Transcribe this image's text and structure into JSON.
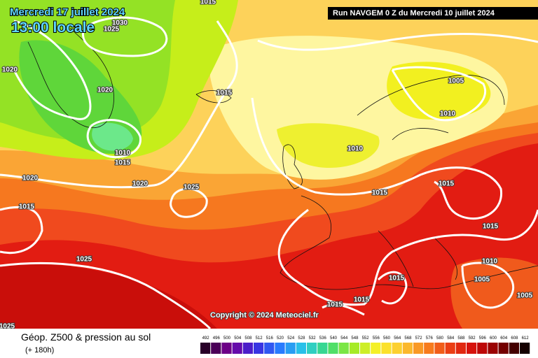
{
  "header": {
    "date": "Mercredi 17 juillet 2024",
    "time": "13:00 locale",
    "run": "Run NAVGEM 0 Z du Mercredi 10 juillet 2024"
  },
  "isobar_labels": [
    "1015",
    "1030",
    "1025",
    "1020",
    "1020",
    "1015",
    "1005",
    "1010",
    "1010",
    "1015",
    "1010",
    "1020",
    "1020",
    "1025",
    "1015",
    "1015",
    "1015",
    "1015",
    "1025",
    "1010",
    "1015",
    "1005",
    "1005",
    "1015",
    "1015",
    "1025"
  ],
  "copyright": "Copyright © 2024 Meteociel.fr",
  "legend": {
    "title": "Géop. Z500 & pression au sol",
    "subtitle": "(+ 180h)",
    "scale": [
      492,
      496,
      500,
      504,
      508,
      512,
      516,
      520,
      524,
      528,
      532,
      536,
      540,
      544,
      548,
      552,
      556,
      560,
      564,
      568,
      572,
      576,
      580,
      584,
      588,
      592,
      596,
      600,
      604,
      608,
      612
    ]
  }
}
